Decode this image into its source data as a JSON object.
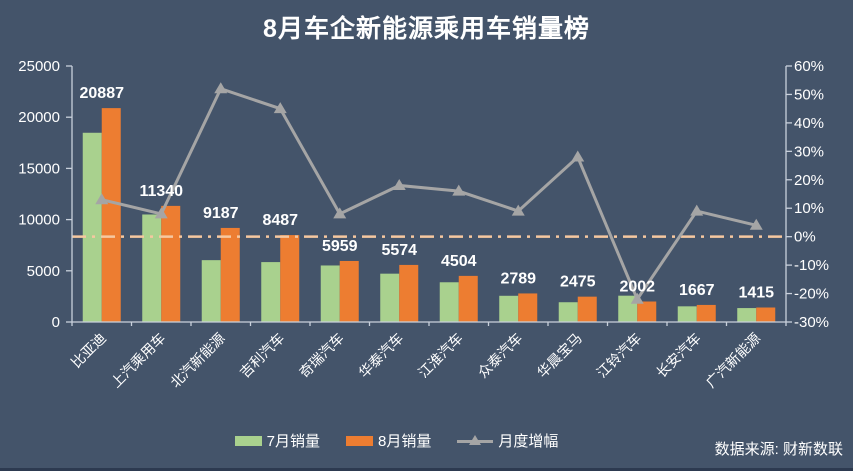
{
  "title": "8月车企新能源乘用车销量榜",
  "source_text": "数据来源: 财新数联",
  "colors": {
    "background": "#44546A",
    "bottom_edge": "#2D3A50",
    "july_bar": "#A9D18E",
    "august_bar": "#ED7D31",
    "growth_line": "#A5A5A5",
    "zero_reference_line": "#F6C8A0",
    "axis": "#C9D1DC",
    "text": "#FFFFFF"
  },
  "legend": {
    "items": [
      {
        "label": "7月销量",
        "swatch": "bar",
        "color": "#A9D18E"
      },
      {
        "label": "8月销量",
        "swatch": "bar",
        "color": "#ED7D31"
      },
      {
        "label": "月度增幅",
        "swatch": "line",
        "color": "#A5A5A5"
      }
    ]
  },
  "chart_data": {
    "type": "bar",
    "subtype": "grouped bars with secondary-axis line (combo)",
    "title": "8月车企新能源乘用车销量榜",
    "categories": [
      "比亚迪",
      "上汽乘用车",
      "北汽新能源",
      "吉利汽车",
      "奇瑞汽车",
      "华泰汽车",
      "江淮汽车",
      "众泰汽车",
      "华晨宝马",
      "江铃汽车",
      "长安汽车",
      "广汽新能源"
    ],
    "series": [
      {
        "name": "7月销量",
        "type": "bar",
        "axis": "left",
        "color": "#A9D18E",
        "values": [
          18480,
          10500,
          6040,
          5850,
          5520,
          4720,
          3880,
          2560,
          1930,
          2570,
          1530,
          1360
        ]
      },
      {
        "name": "8月销量",
        "type": "bar",
        "axis": "left",
        "color": "#ED7D31",
        "values": [
          20887,
          11340,
          9187,
          8487,
          5959,
          5574,
          4504,
          2789,
          2475,
          2002,
          1667,
          1415
        ],
        "data_labels": [
          "20887",
          "11340",
          "9187",
          "8487",
          "5959",
          "5574",
          "4504",
          "2789",
          "2475",
          "2002",
          "1667",
          "1415"
        ]
      },
      {
        "name": "月度增幅",
        "type": "line",
        "axis": "right",
        "color": "#A5A5A5",
        "marker": "triangle-up",
        "values_pct": [
          13,
          8,
          52,
          45,
          8,
          18,
          16,
          9,
          28,
          -22,
          9,
          4
        ]
      }
    ],
    "left_axis": {
      "min": 0,
      "max": 25000,
      "tick_step": 5000,
      "tick_labels": [
        "0",
        "5000",
        "10000",
        "15000",
        "20000",
        "25000"
      ]
    },
    "right_axis": {
      "min": -30,
      "max": 60,
      "tick_step": 10,
      "tick_labels": [
        "60%",
        "50%",
        "40%",
        "30%",
        "20%",
        "10%",
        "0%",
        "-10%",
        "-20%",
        "-30%"
      ]
    },
    "reference_line": {
      "axis": "right",
      "value_pct": 0,
      "style": "dash-dot"
    },
    "grid": false,
    "legend_position": "bottom",
    "x_labels_rotation_deg": 45
  }
}
